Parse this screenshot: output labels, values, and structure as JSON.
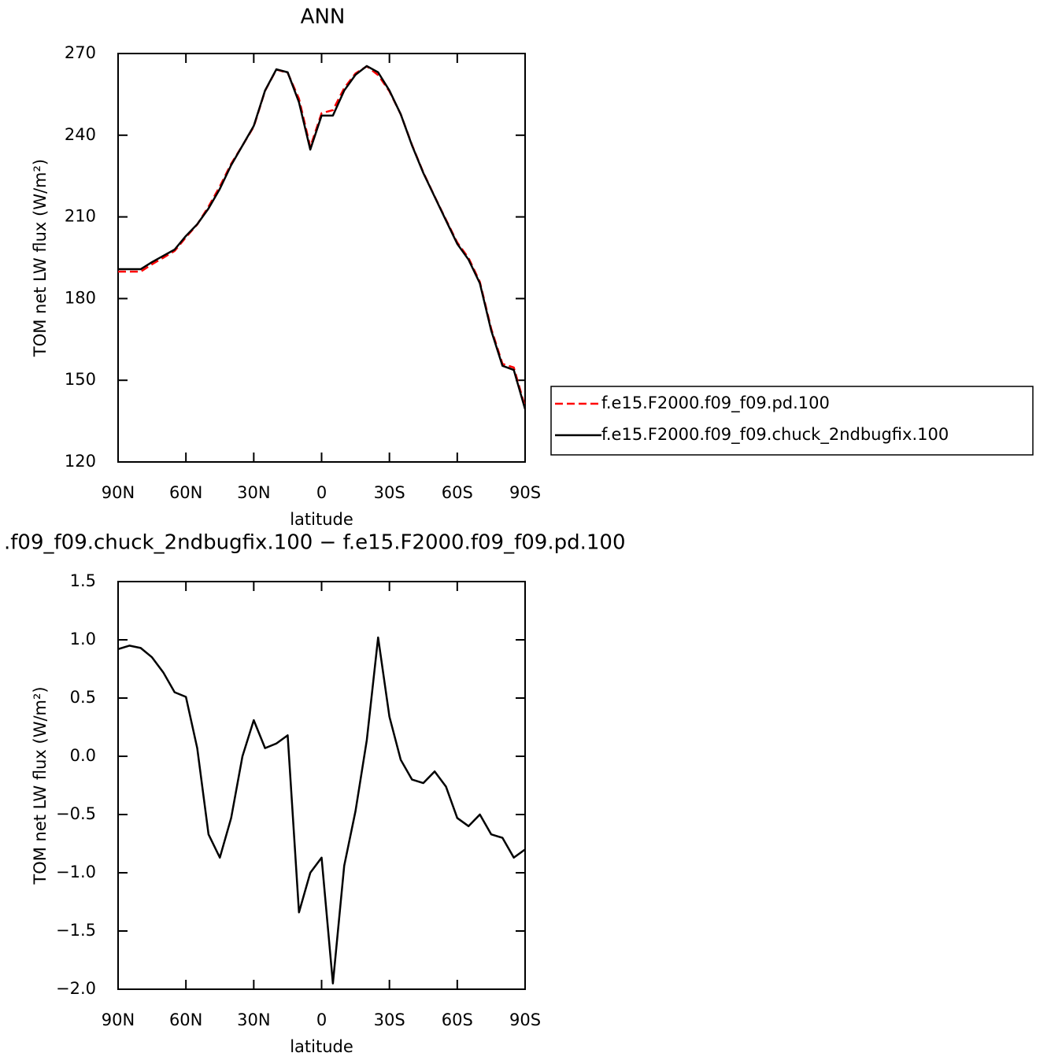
{
  "chart_data": [
    {
      "type": "line",
      "title": "ANN",
      "x_label": "latitude",
      "y_label": "TOM net LW flux (W/m²)",
      "x": [
        90,
        85,
        80,
        75,
        70,
        65,
        60,
        55,
        50,
        45,
        40,
        35,
        30,
        25,
        20,
        15,
        10,
        5,
        0,
        -5,
        -10,
        -15,
        -20,
        -25,
        -30,
        -35,
        -40,
        -45,
        -50,
        -55,
        -60,
        -65,
        -70,
        -75,
        -80,
        -85,
        -90
      ],
      "series": [
        {
          "name": "f.e15.F2000.f09_f09.pd.100",
          "color": "#ff0000",
          "linestyle": "dashed",
          "values": [
            189.9,
            189.9,
            189.9,
            192.6,
            195.0,
            197.5,
            202.5,
            207.2,
            213.8,
            221.2,
            229.5,
            236.2,
            243.1,
            256.3,
            264.1,
            262.9,
            253.4,
            235.7,
            248.1,
            249.2,
            257.3,
            262.7,
            265.3,
            262.1,
            256.1,
            247.7,
            236.4,
            226.3,
            217.5,
            209.0,
            200.6,
            194.9,
            186.1,
            169.0,
            156.0,
            154.7,
            140.2
          ]
        },
        {
          "name": "f.e15.F2000.f09_f09.chuck_2ndbugfix.100",
          "color": "#000000",
          "linestyle": "solid",
          "values": [
            190.8,
            190.8,
            190.8,
            193.4,
            195.7,
            198.0,
            203.0,
            207.3,
            213.1,
            220.3,
            229.0,
            236.2,
            243.4,
            256.4,
            264.2,
            263.1,
            252.1,
            234.7,
            247.2,
            247.2,
            256.4,
            262.2,
            265.4,
            263.1,
            256.4,
            247.7,
            236.2,
            226.1,
            217.4,
            208.7,
            200.1,
            194.3,
            185.6,
            168.3,
            155.3,
            153.8,
            139.4
          ]
        }
      ],
      "xlim": [
        90,
        -90
      ],
      "xticks": [
        {
          "value": 90,
          "label": "90N"
        },
        {
          "value": 60,
          "label": "60N"
        },
        {
          "value": 30,
          "label": "30N"
        },
        0,
        {
          "value": -30,
          "label": "30S"
        },
        {
          "value": -60,
          "label": "60S"
        },
        {
          "value": -90,
          "label": "90S"
        }
      ],
      "ylim": [
        120,
        270
      ],
      "yticks": [
        120,
        150,
        180,
        210,
        240,
        270
      ],
      "legend": "right"
    },
    {
      "type": "line",
      "title": ".f09_f09.chuck_2ndbugfix.100 − f.e15.F2000.f09_f09.pd.100",
      "x_label": "latitude",
      "y_label": "TOM net LW flux (W/m²)",
      "x": [
        90,
        85,
        80,
        75,
        70,
        65,
        60,
        55,
        50,
        45,
        40,
        35,
        30,
        25,
        20,
        15,
        10,
        5,
        0,
        -5,
        -10,
        -15,
        -20,
        -25,
        -30,
        -35,
        -40,
        -45,
        -50,
        -55,
        -60,
        -65,
        -70,
        -75,
        -80,
        -85,
        -90
      ],
      "series": [
        {
          "color": "#000000",
          "linestyle": "solid",
          "values": [
            0.92,
            0.95,
            0.93,
            0.85,
            0.72,
            0.55,
            0.51,
            0.07,
            -0.67,
            -0.87,
            -0.53,
            0.0,
            0.31,
            0.07,
            0.11,
            0.18,
            -1.34,
            -1.0,
            -0.87,
            -1.95,
            -0.94,
            -0.47,
            0.14,
            1.02,
            0.34,
            -0.03,
            -0.2,
            -0.23,
            -0.13,
            -0.26,
            -0.53,
            -0.6,
            -0.5,
            -0.67,
            -0.7,
            -0.87,
            -0.8
          ]
        }
      ],
      "xlim": [
        90,
        -90
      ],
      "xticks": [
        {
          "value": 90,
          "label": "90N"
        },
        {
          "value": 60,
          "label": "60N"
        },
        {
          "value": 30,
          "label": "30N"
        },
        0,
        {
          "value": -30,
          "label": "30S"
        },
        {
          "value": -60,
          "label": "60S"
        },
        {
          "value": -90,
          "label": "90S"
        }
      ],
      "ylim": [
        -2.0,
        1.5
      ],
      "yticks": [
        {
          "value": -2,
          "label": "−2.0"
        },
        {
          "value": -1.5,
          "label": "−1.5"
        },
        {
          "value": -1,
          "label": "−1.0"
        },
        {
          "value": -0.5,
          "label": "−0.5"
        },
        {
          "value": 0,
          "label": "0.0"
        },
        0.5,
        {
          "value": 1,
          "label": "1.0"
        },
        1.5
      ]
    }
  ]
}
